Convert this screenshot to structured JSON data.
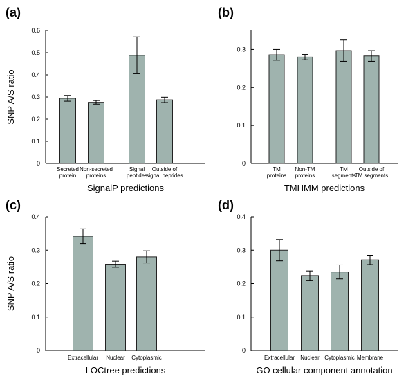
{
  "chart_data": [
    {
      "type": "bar",
      "panel": "(a)",
      "title": "",
      "xlabel": "SignalP predictions",
      "ylabel": "SNP A/S ratio",
      "ylim": [
        0,
        0.6
      ],
      "yticks": [
        "0",
        "0.1",
        "0.2",
        "0.3",
        "0.4",
        "0.5",
        "0.6"
      ],
      "categories": [
        [
          "Secreted",
          "protein"
        ],
        [
          "Non-secreted",
          "proteins"
        ],
        [
          "Signal",
          "peptides"
        ],
        [
          "Outside of",
          "signal peptides"
        ]
      ],
      "values": [
        0.294,
        0.276,
        0.488,
        0.287
      ],
      "errors": [
        0.013,
        0.008,
        0.083,
        0.012
      ],
      "grid": false
    },
    {
      "type": "bar",
      "panel": "(b)",
      "title": "",
      "xlabel": "TMHMM predictions",
      "ylabel": "",
      "ylim": [
        0,
        0.35
      ],
      "yticks": [
        "0",
        "0.1",
        "0.2",
        "0.3"
      ],
      "categories": [
        [
          "TM",
          "proteins"
        ],
        [
          "Non-TM",
          "proteins"
        ],
        [
          "TM",
          "segments"
        ],
        [
          "Outside of",
          "TM segments"
        ]
      ],
      "values": [
        0.286,
        0.28,
        0.297,
        0.283
      ],
      "errors": [
        0.014,
        0.007,
        0.028,
        0.014
      ],
      "grid": false
    },
    {
      "type": "bar",
      "panel": "(c)",
      "title": "",
      "xlabel": "LOCtree predictions",
      "ylabel": "SNP A/S ratio",
      "ylim": [
        0,
        0.4
      ],
      "yticks": [
        "0",
        "0.1",
        "0.2",
        "0.3",
        "0.4"
      ],
      "categories": [
        [
          "Extracellular"
        ],
        [
          "Nuclear"
        ],
        [
          "Cytoplasmic"
        ]
      ],
      "values": [
        0.342,
        0.258,
        0.28
      ],
      "errors": [
        0.022,
        0.009,
        0.018
      ],
      "grid": false
    },
    {
      "type": "bar",
      "panel": "(d)",
      "title": "",
      "xlabel": "GO cellular component annotation",
      "ylabel": "",
      "ylim": [
        0,
        0.4
      ],
      "yticks": [
        "0",
        "0.1",
        "0.2",
        "0.3",
        "0.4"
      ],
      "categories": [
        [
          "Extracellular"
        ],
        [
          "Nuclear"
        ],
        [
          "Cytoplasmic"
        ],
        [
          "Membrane"
        ]
      ],
      "values": [
        0.3,
        0.224,
        0.235,
        0.271
      ],
      "errors": [
        0.032,
        0.014,
        0.021,
        0.014
      ],
      "grid": false
    }
  ]
}
